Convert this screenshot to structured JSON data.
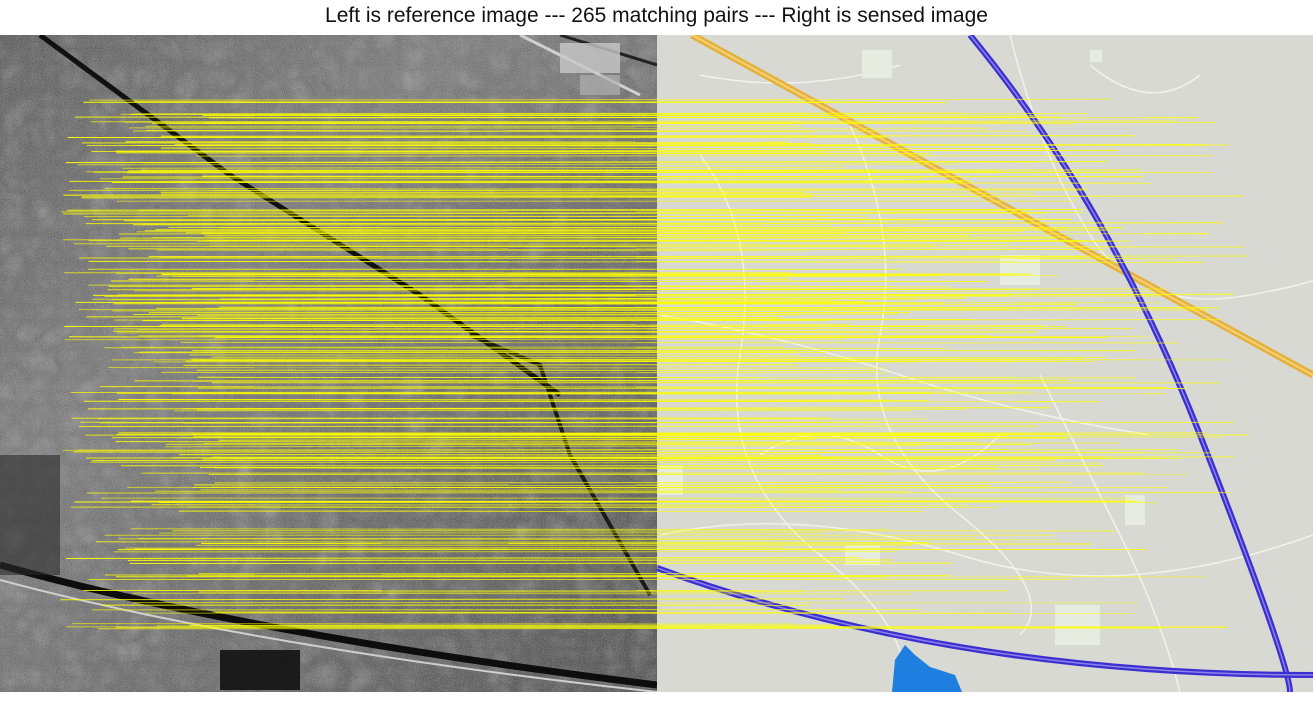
{
  "figure": {
    "title": "Left is reference image --- 265 matching pairs --- Right is sensed image",
    "reference_image": "sar-satellite-terrain-grayscale",
    "sensed_image": "road-map-light-gray",
    "match_line_color": "#ffff00",
    "map_colors": {
      "background": "#d7d9d2",
      "expressway": "#3b2fd0",
      "railway": "#e5b13a",
      "road": "#f5f5f0",
      "water": "#1e7fe0",
      "built_area": "#e6ecdf"
    },
    "matching_pairs": 265
  }
}
